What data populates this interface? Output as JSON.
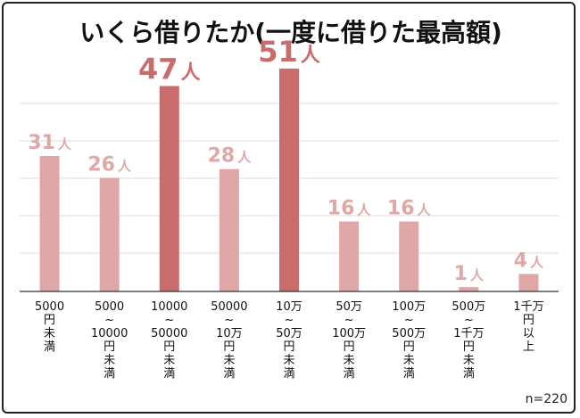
{
  "chart_data": {
    "type": "bar",
    "title": "いくら借りたか(一度に借りた最高額)",
    "xlabel": "",
    "ylabel": "",
    "ylim": [
      0,
      52
    ],
    "grid": true,
    "sample_label": "n=220",
    "unit_suffix": "人",
    "categories": [
      [
        "5000",
        "円",
        "未",
        "満"
      ],
      [
        "5000",
        "~",
        "10000",
        "円",
        "未",
        "満"
      ],
      [
        "10000",
        "~",
        "50000",
        "円",
        "未",
        "満"
      ],
      [
        "50000",
        "~",
        "10万",
        "円",
        "未",
        "満"
      ],
      [
        "10万",
        "~",
        "50万",
        "円",
        "未",
        "満"
      ],
      [
        "50万",
        "~",
        "100万",
        "円",
        "未",
        "満"
      ],
      [
        "100万",
        "~",
        "500万",
        "円",
        "未",
        "満"
      ],
      [
        "500万",
        "~",
        "1千万",
        "円",
        "未",
        "満"
      ],
      [
        "1千万",
        "円",
        "以",
        "上"
      ]
    ],
    "values": [
      31,
      26,
      47,
      28,
      51,
      16,
      16,
      1,
      4
    ],
    "value_labels": [
      "31",
      "26",
      "47",
      "28",
      "51",
      "16",
      "16",
      "1",
      "4"
    ],
    "highlight": [
      false,
      false,
      true,
      false,
      true,
      false,
      false,
      false,
      false
    ],
    "colors": {
      "bar": "#e0a7a7",
      "bar_highlight": "#c96c6c",
      "grid": "#dddddd",
      "axis": "#333333"
    }
  }
}
